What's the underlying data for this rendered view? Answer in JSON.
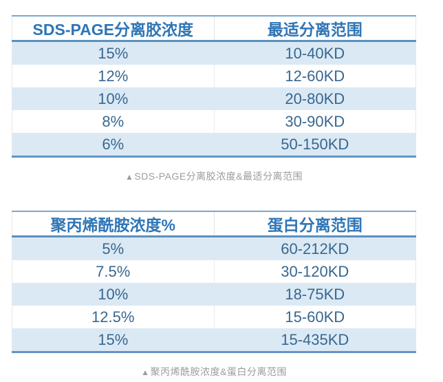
{
  "colors": {
    "header_text": "#2e75b6",
    "cell_text": "#38678f",
    "rule_blue": "#6294c4",
    "row_stripe": "#dbe9f5",
    "caption_text": "#9c9c9c"
  },
  "tables": [
    {
      "headers": [
        "SDS-PAGE分离胶浓度",
        "最适分离范围"
      ],
      "rows": [
        [
          "15%",
          "10-40KD"
        ],
        [
          "12%",
          "12-60KD"
        ],
        [
          "10%",
          "20-80KD"
        ],
        [
          "8%",
          "30-90KD"
        ],
        [
          "6%",
          "50-150KD"
        ]
      ],
      "caption_marker": "▲",
      "caption": "SDS-PAGE分离胶浓度&最适分离范围"
    },
    {
      "headers": [
        "聚丙烯酰胺浓度%",
        "蛋白分离范围"
      ],
      "rows": [
        [
          "5%",
          "60-212KD"
        ],
        [
          "7.5%",
          "30-120KD"
        ],
        [
          "10%",
          "18-75KD"
        ],
        [
          "12.5%",
          "15-60KD"
        ],
        [
          "15%",
          "15-435KD"
        ]
      ],
      "caption_marker": "▲",
      "caption": "聚丙烯酰胺浓度&蛋白分离范围"
    }
  ]
}
